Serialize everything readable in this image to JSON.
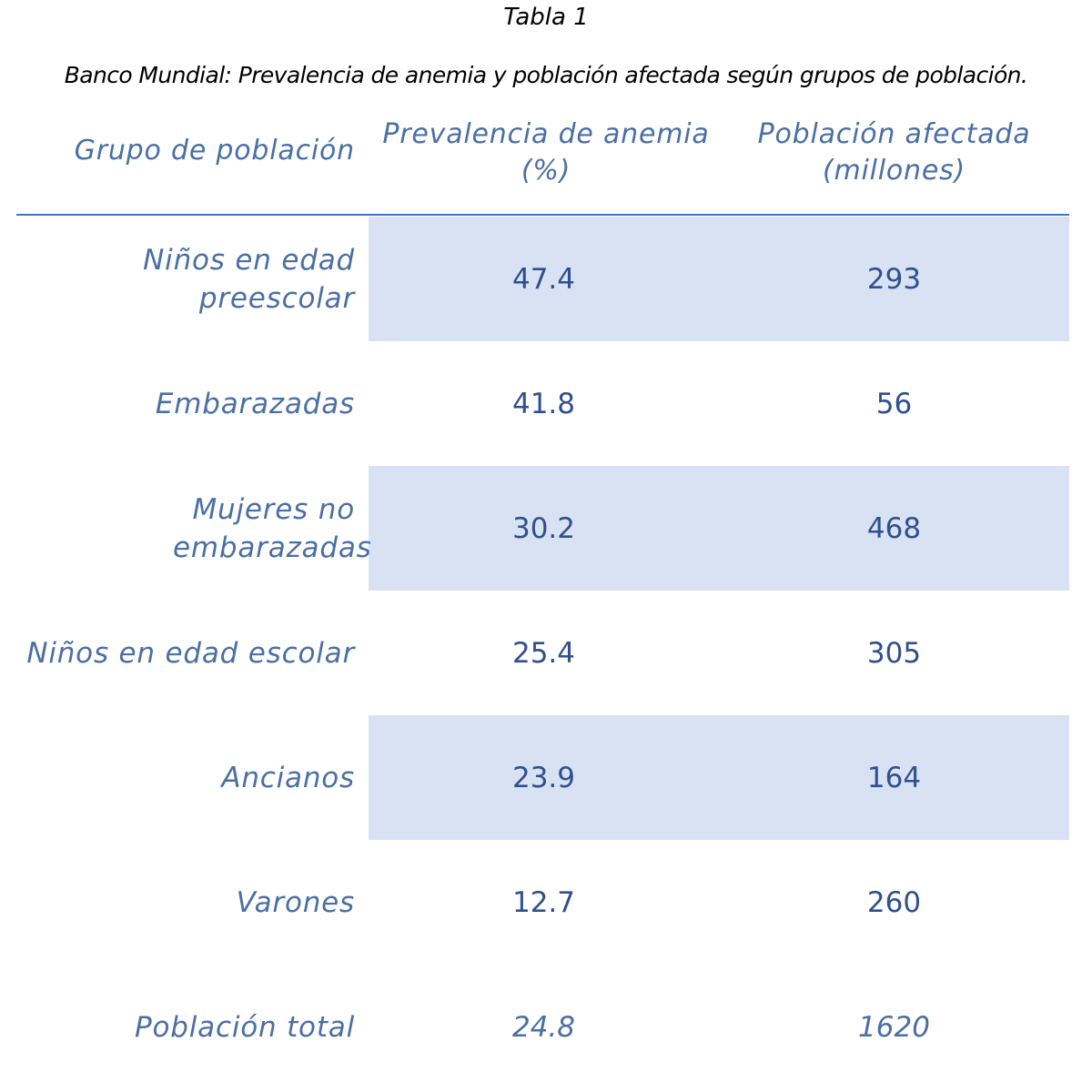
{
  "table_number": "Tabla 1",
  "caption": "Banco Mundial: Prevalencia de anemia y población afectada según grupos de población.",
  "headers": {
    "group": "Grupo de población",
    "prevalence_line1": "Prevalencia de anemia",
    "prevalence_line2": "(%)",
    "population_line1": "Población afectada",
    "population_line2": "(millones)"
  },
  "rows": [
    {
      "group": "Niños en edad preescolar",
      "prevalence": "47.4",
      "population": "293",
      "shaded": true
    },
    {
      "group": "Embarazadas",
      "prevalence": "41.8",
      "population": "56",
      "shaded": false
    },
    {
      "group": "Mujeres no embarazadas",
      "prevalence": "30.2",
      "population": "468",
      "shaded": true
    },
    {
      "group": "Niños en edad escolar",
      "prevalence": "25.4",
      "population": "305",
      "shaded": false
    },
    {
      "group": "Ancianos",
      "prevalence": "23.9",
      "population": "164",
      "shaded": true
    },
    {
      "group": "Varones",
      "prevalence": "12.7",
      "population": "260",
      "shaded": false
    },
    {
      "group": "Población total",
      "prevalence": "24.8",
      "population": "1620",
      "shaded": false
    }
  ],
  "colors": {
    "header_text": "#4a6fa5",
    "value_text": "#2f4f8f",
    "band_fill": "#d9e2f3",
    "rule": "#4472c4"
  }
}
